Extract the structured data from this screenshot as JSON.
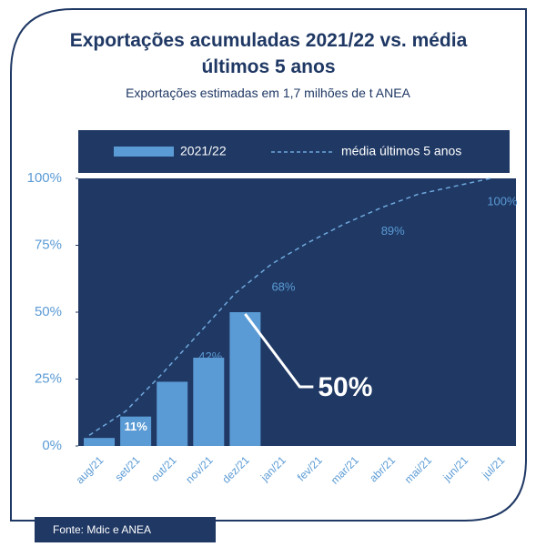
{
  "chart_data": {
    "type": "combo",
    "title": "Exportações acumuladas 2021/22 vs. média últimos 5 anos",
    "subtitle": "Exportações estimadas em 1,7 milhões de t ANEA",
    "source": "Fonte: Mdic e ANEA",
    "categories": [
      "aug/21",
      "set/21",
      "out/21",
      "nov/21",
      "dez/21",
      "jan/21",
      "fev/21",
      "mar/21",
      "abr/21",
      "mai/21",
      "jun/21",
      "jul/21"
    ],
    "series": [
      {
        "name": "2021/22",
        "type": "bar",
        "color": "#5b9bd5",
        "values": [
          3,
          11,
          24,
          33,
          50,
          null,
          null,
          null,
          null,
          null,
          null,
          null
        ],
        "value_labels": [
          null,
          "11%",
          null,
          null,
          "50%",
          null,
          null,
          null,
          null,
          null,
          null,
          null
        ]
      },
      {
        "name": "média últimos 5 anos",
        "type": "line",
        "color": "#6fa8dc",
        "dashed": true,
        "values": [
          4,
          13,
          27,
          42,
          57,
          68,
          76,
          83,
          89,
          94,
          97,
          100
        ],
        "value_labels": [
          null,
          null,
          null,
          "42%",
          null,
          "68%",
          null,
          null,
          "89%",
          null,
          null,
          "100%"
        ]
      }
    ],
    "ylim": [
      0,
      100
    ],
    "yticks": [
      {
        "value": 0,
        "label": "0%"
      },
      {
        "value": 25,
        "label": "25%"
      },
      {
        "value": 50,
        "label": "50%"
      },
      {
        "value": 75,
        "label": "75%"
      },
      {
        "value": 100,
        "label": "100%"
      }
    ],
    "legend": "top"
  }
}
